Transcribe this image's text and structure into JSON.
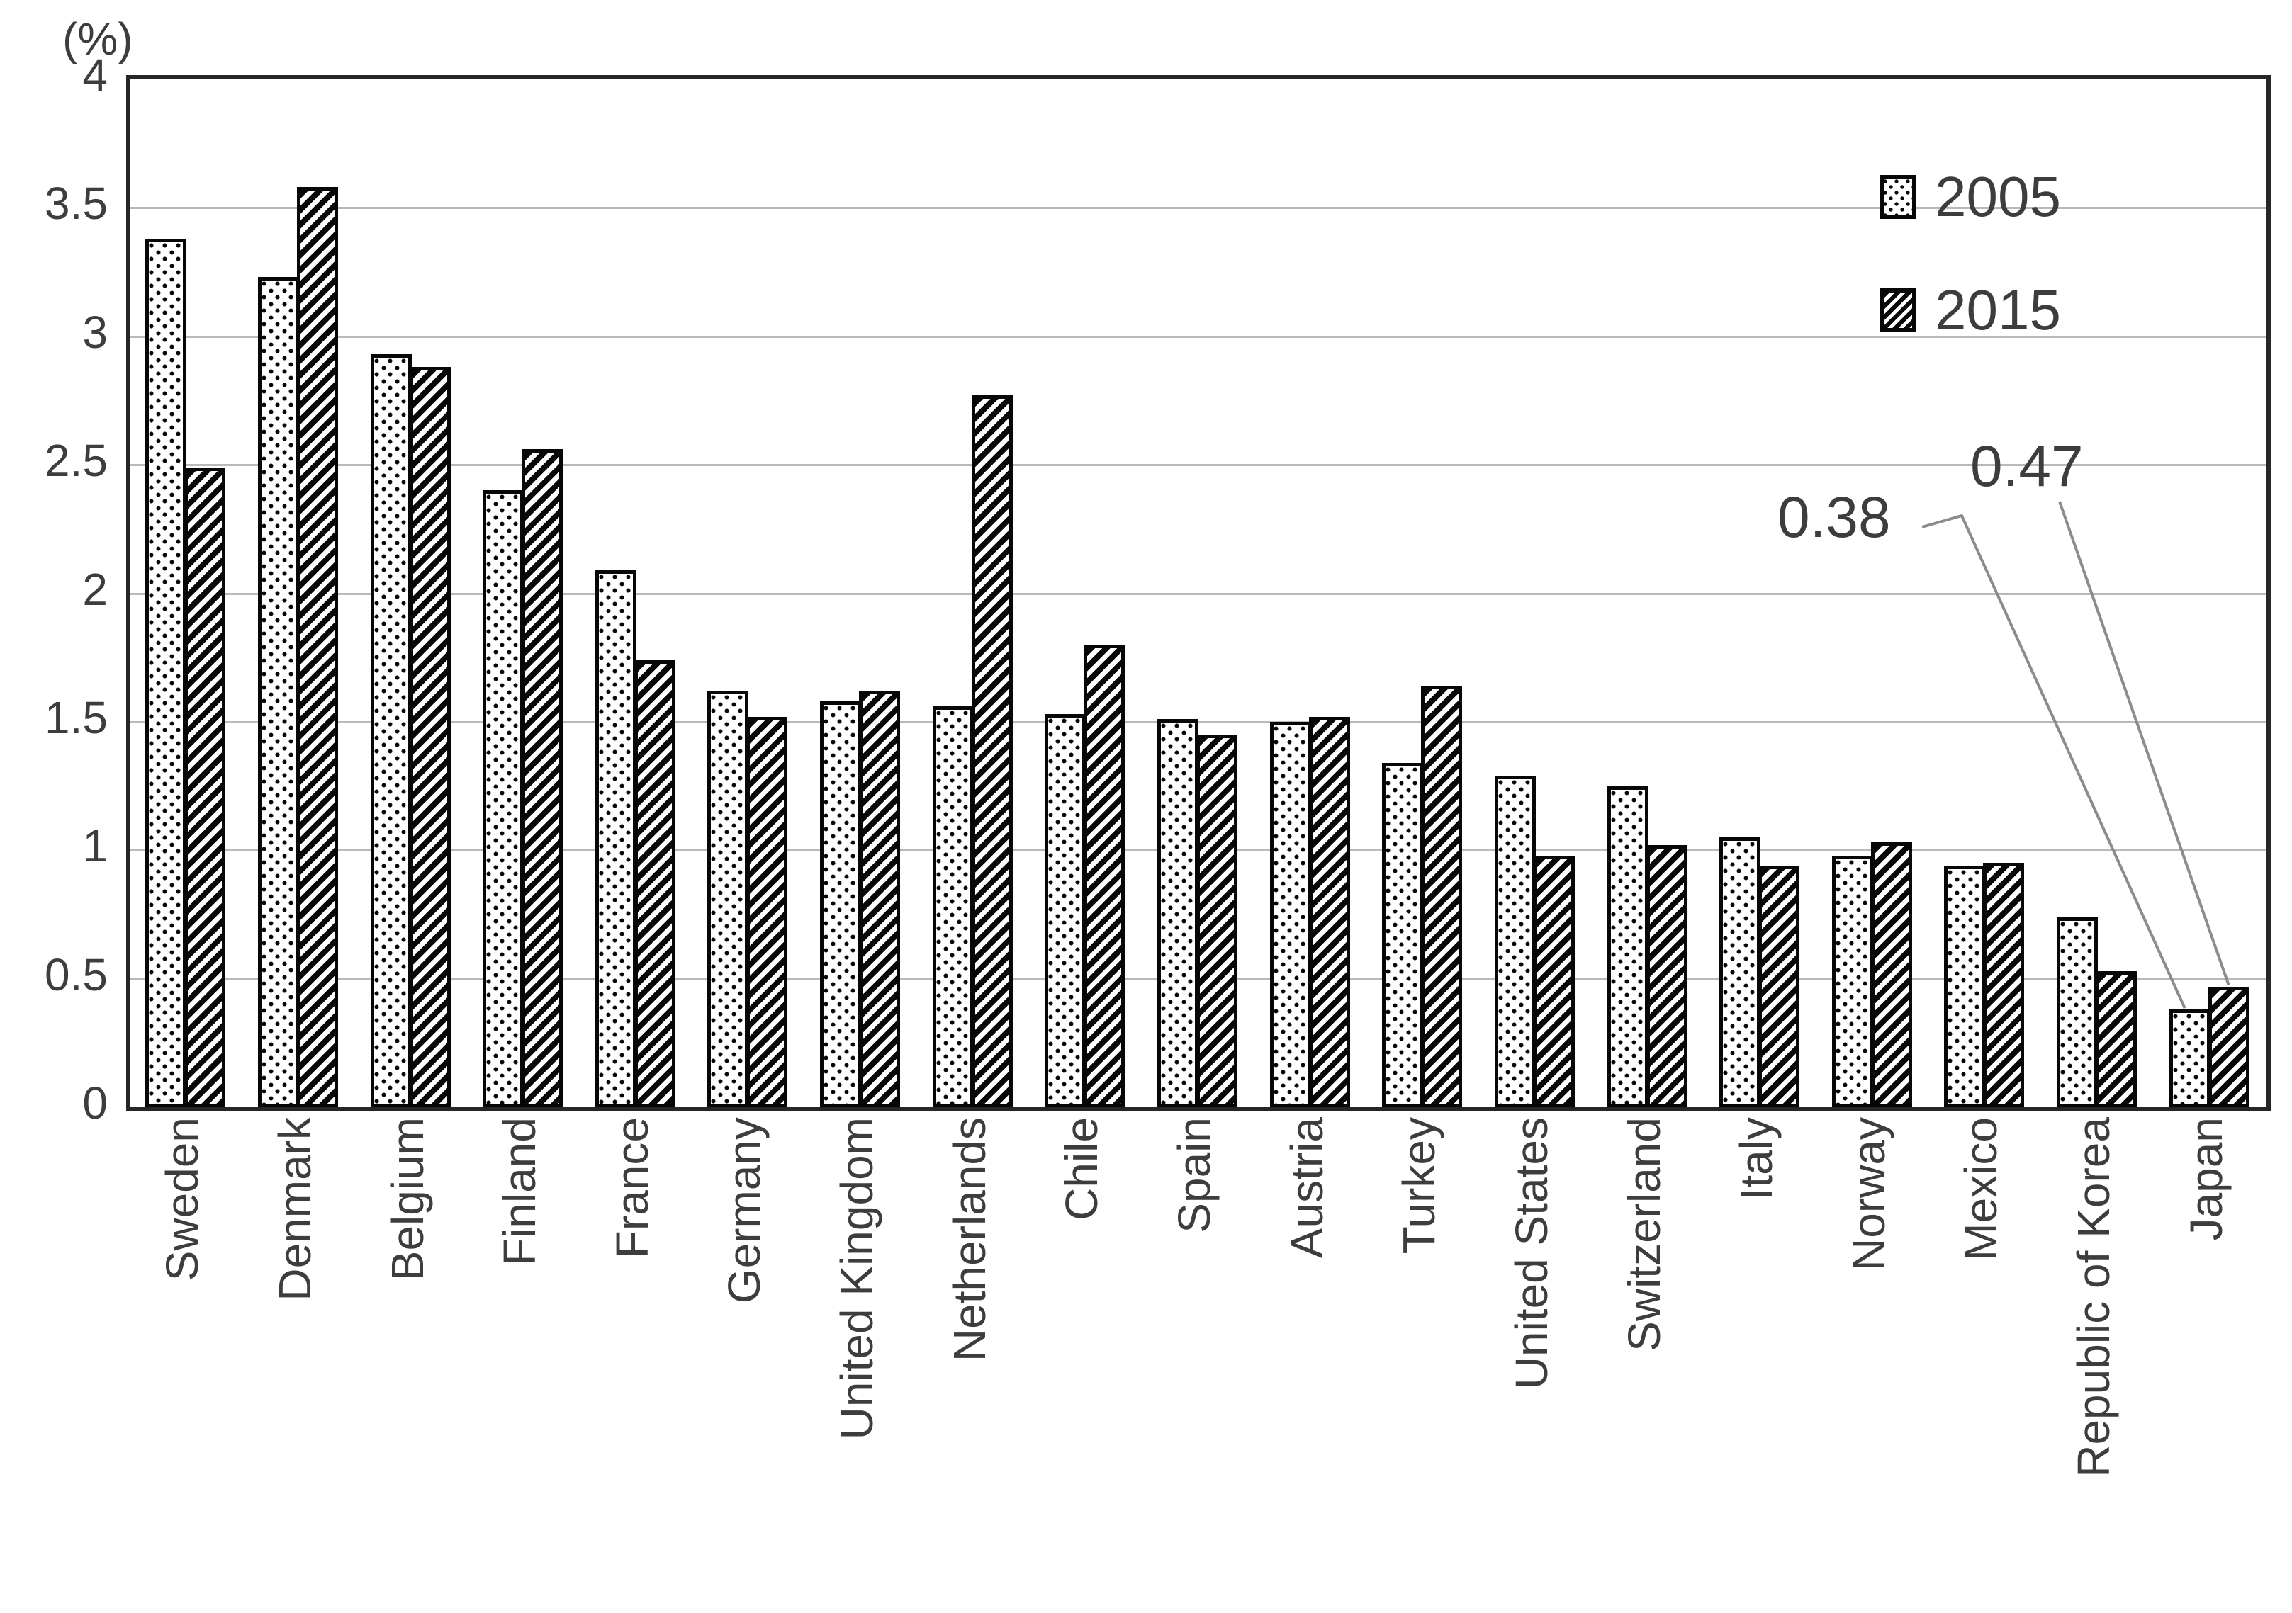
{
  "chart_data": {
    "type": "bar",
    "title": "",
    "unit_label": "(%)",
    "xlabel": "",
    "ylabel": "(%)",
    "ylim": [
      0,
      4
    ],
    "ytick_step": 0.5,
    "ytick_labels": [
      "4",
      "3.5",
      "3",
      "2.5",
      "2",
      "1.5",
      "1",
      "0.5",
      "0"
    ],
    "grid": "horizontal",
    "legend_position": "top-right-inside",
    "categories": [
      "Sweden",
      "Denmark",
      "Belgium",
      "Finland",
      "France",
      "Germany",
      "United Kingdom",
      "Netherlands",
      "Chile",
      "Spain",
      "Austria",
      "Turkey",
      "United States",
      "Switzerland",
      "Italy",
      "Norway",
      "Mexico",
      "Republic of Korea",
      "Japan"
    ],
    "series": [
      {
        "name": "2005",
        "pattern": "dots",
        "values": [
          3.38,
          3.23,
          2.93,
          2.4,
          2.09,
          1.62,
          1.58,
          1.56,
          1.53,
          1.51,
          1.5,
          1.34,
          1.29,
          1.25,
          1.05,
          0.98,
          0.94,
          0.74,
          0.38
        ]
      },
      {
        "name": "2015",
        "pattern": "diagonal-hatch",
        "values": [
          2.49,
          3.58,
          2.88,
          2.56,
          1.74,
          1.52,
          1.62,
          2.77,
          1.8,
          1.45,
          1.52,
          1.64,
          0.98,
          1.02,
          0.94,
          1.03,
          0.95,
          0.53,
          0.47
        ]
      }
    ],
    "annotations": [
      {
        "text": "0.38",
        "series": "2005",
        "category": "Japan",
        "value": 0.38
      },
      {
        "text": "0.47",
        "series": "2015",
        "category": "Japan",
        "value": 0.47
      }
    ]
  }
}
